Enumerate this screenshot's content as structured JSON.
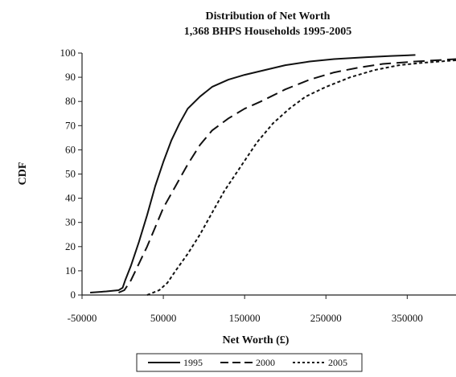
{
  "chart_data": {
    "type": "line",
    "title_lines": [
      "Distribution of Net Worth",
      "1,368 BHPS Households 1995-2005"
    ],
    "xlabel": "Net Worth (£)",
    "ylabel": "CDF",
    "xlim": [
      -50000,
      410000
    ],
    "ylim": [
      0,
      100
    ],
    "x_ticks": [
      -50000,
      50000,
      150000,
      250000,
      350000
    ],
    "x_tick_labels": [
      "-50000",
      "50000",
      "150000",
      "250000",
      "350000"
    ],
    "y_ticks": [
      0,
      10,
      20,
      30,
      40,
      50,
      60,
      70,
      80,
      90,
      100
    ],
    "y_tick_labels": [
      "0",
      "10",
      "20",
      "30",
      "40",
      "50",
      "60",
      "70",
      "80",
      "90",
      "100"
    ],
    "legend_position": "bottom",
    "series": [
      {
        "name": "1995",
        "dash": "solid",
        "points": [
          [
            -40000,
            1
          ],
          [
            -20000,
            1.5
          ],
          [
            -5000,
            2
          ],
          [
            0,
            3
          ],
          [
            3000,
            6
          ],
          [
            10000,
            12
          ],
          [
            20000,
            22
          ],
          [
            30000,
            33
          ],
          [
            40000,
            45
          ],
          [
            50000,
            55
          ],
          [
            60000,
            64
          ],
          [
            70000,
            71
          ],
          [
            80000,
            77
          ],
          [
            95000,
            82
          ],
          [
            110000,
            86
          ],
          [
            130000,
            89
          ],
          [
            150000,
            91
          ],
          [
            175000,
            93
          ],
          [
            200000,
            95
          ],
          [
            230000,
            96.5
          ],
          [
            260000,
            97.5
          ],
          [
            300000,
            98.3
          ],
          [
            330000,
            98.8
          ],
          [
            360000,
            99.2
          ]
        ]
      },
      {
        "name": "2000",
        "dash": "long-dash",
        "points": [
          [
            -5000,
            1
          ],
          [
            2000,
            2
          ],
          [
            10000,
            6
          ],
          [
            20000,
            13
          ],
          [
            30000,
            20
          ],
          [
            40000,
            28
          ],
          [
            50000,
            36
          ],
          [
            65000,
            45
          ],
          [
            80000,
            54
          ],
          [
            95000,
            62
          ],
          [
            110000,
            68
          ],
          [
            130000,
            73
          ],
          [
            150000,
            77
          ],
          [
            170000,
            80
          ],
          [
            200000,
            85
          ],
          [
            230000,
            89
          ],
          [
            260000,
            92
          ],
          [
            290000,
            94
          ],
          [
            320000,
            95.5
          ],
          [
            360000,
            96.5
          ],
          [
            410000,
            97.5
          ]
        ]
      },
      {
        "name": "2005",
        "dash": "short-dash",
        "points": [
          [
            30000,
            0
          ],
          [
            45000,
            2
          ],
          [
            55000,
            5
          ],
          [
            65000,
            10
          ],
          [
            80000,
            17
          ],
          [
            95000,
            25
          ],
          [
            110000,
            34
          ],
          [
            125000,
            43
          ],
          [
            145000,
            53
          ],
          [
            165000,
            63
          ],
          [
            185000,
            71
          ],
          [
            205000,
            77
          ],
          [
            225000,
            82
          ],
          [
            250000,
            86
          ],
          [
            280000,
            90
          ],
          [
            310000,
            93
          ],
          [
            340000,
            95
          ],
          [
            370000,
            96
          ],
          [
            410000,
            97
          ]
        ]
      }
    ]
  }
}
